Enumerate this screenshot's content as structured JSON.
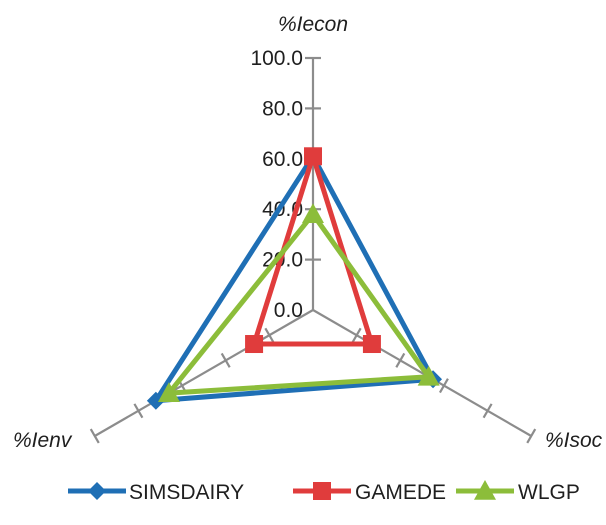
{
  "chart_data": {
    "type": "radar",
    "axes": [
      "%Iecon",
      "%Isoc",
      "%Ienv"
    ],
    "r_range": [
      0,
      100
    ],
    "r_ticks": [
      "0.0",
      "20.0",
      "40.0",
      "60.0",
      "80.0",
      "100.0"
    ],
    "grid": false,
    "legend_position": "bottom",
    "series": [
      {
        "name": "SIMSDAIRY",
        "color": "#1f6fb5",
        "marker": "diamond",
        "values": [
          61,
          55,
          72
        ]
      },
      {
        "name": "GAMEDE",
        "color": "#e03c3c",
        "marker": "square",
        "values": [
          61,
          27,
          27
        ]
      },
      {
        "name": "WLGP",
        "color": "#8cbd3a",
        "marker": "triangle",
        "values": [
          38,
          53,
          66
        ]
      }
    ]
  }
}
